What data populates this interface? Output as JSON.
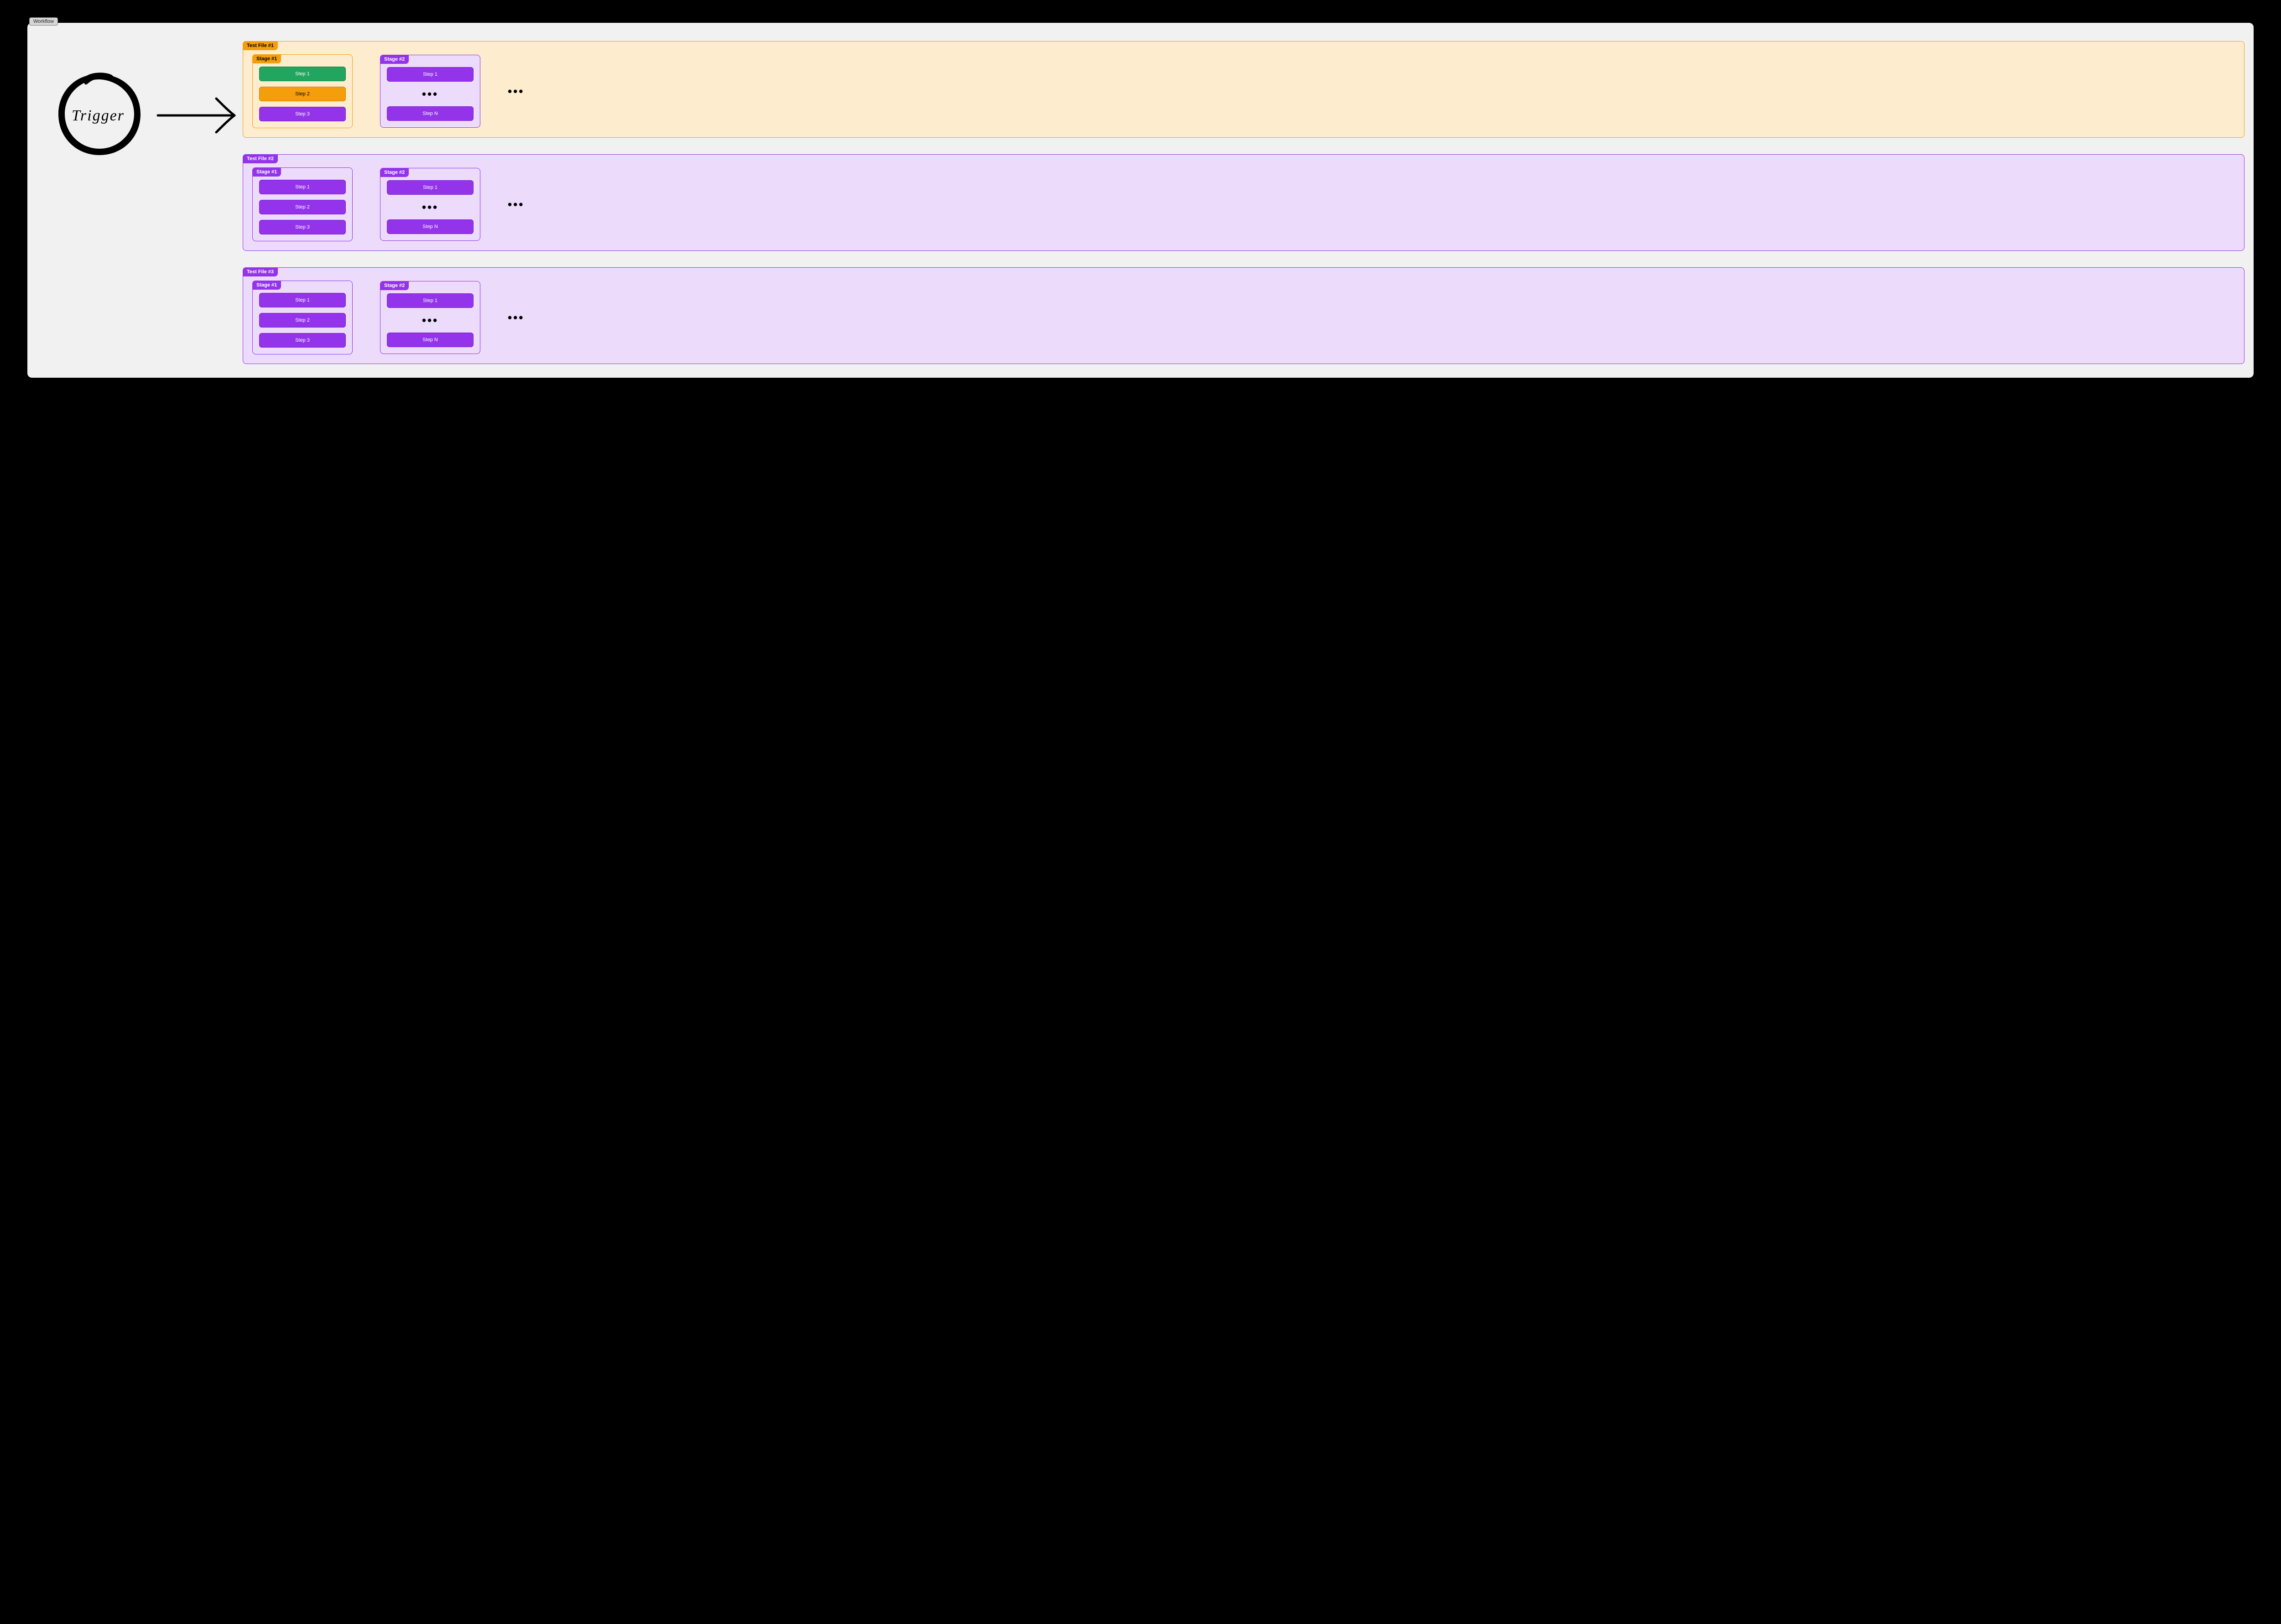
{
  "canvas": {
    "title": "Workflow",
    "background": "#f1f1f1"
  },
  "trigger": {
    "label": "Trigger"
  },
  "ellipsis": "•••",
  "colors": {
    "black": "#000000",
    "orange_border": "#f59e0b",
    "orange_fill": "#fdecce",
    "purple_border": "#9333ea",
    "purple_fill": "#ecdbfb",
    "step_green": "#22a55e",
    "step_green_border": "#15803d",
    "step_orange": "#f59e0b",
    "step_orange_border": "#d97706",
    "step_purple": "#9333ea",
    "step_purple_border": "#7e22ce"
  },
  "files": [
    {
      "label": "Test File #1",
      "accent": "orange",
      "stages": [
        {
          "label": "Stage #1",
          "accent": "orange",
          "steps": [
            {
              "text": "Step 1",
              "color": "green"
            },
            {
              "text": "Step 2",
              "color": "orange"
            },
            {
              "text": "Step 3",
              "color": "purple"
            }
          ]
        },
        {
          "label": "Stage #2",
          "accent": "purple",
          "steps": [
            {
              "text": "Step 1",
              "color": "purple"
            },
            {
              "text": "•••",
              "color": "dots"
            },
            {
              "text": "Step N",
              "color": "purple"
            }
          ]
        }
      ]
    },
    {
      "label": "Test File #2",
      "accent": "purple",
      "stages": [
        {
          "label": "Stage #1",
          "accent": "purple",
          "steps": [
            {
              "text": "Step 1",
              "color": "purple"
            },
            {
              "text": "Step 2",
              "color": "purple"
            },
            {
              "text": "Step 3",
              "color": "purple"
            }
          ]
        },
        {
          "label": "Stage #2",
          "accent": "purple",
          "steps": [
            {
              "text": "Step 1",
              "color": "purple"
            },
            {
              "text": "•••",
              "color": "dots"
            },
            {
              "text": "Step N",
              "color": "purple"
            }
          ]
        }
      ]
    },
    {
      "label": "Test File #3",
      "accent": "purple",
      "stages": [
        {
          "label": "Stage #1",
          "accent": "purple",
          "steps": [
            {
              "text": "Step 1",
              "color": "purple"
            },
            {
              "text": "Step 2",
              "color": "purple"
            },
            {
              "text": "Step 3",
              "color": "purple"
            }
          ]
        },
        {
          "label": "Stage #2",
          "accent": "purple",
          "steps": [
            {
              "text": "Step 1",
              "color": "purple"
            },
            {
              "text": "•••",
              "color": "dots"
            },
            {
              "text": "Step N",
              "color": "purple"
            }
          ]
        }
      ]
    }
  ]
}
